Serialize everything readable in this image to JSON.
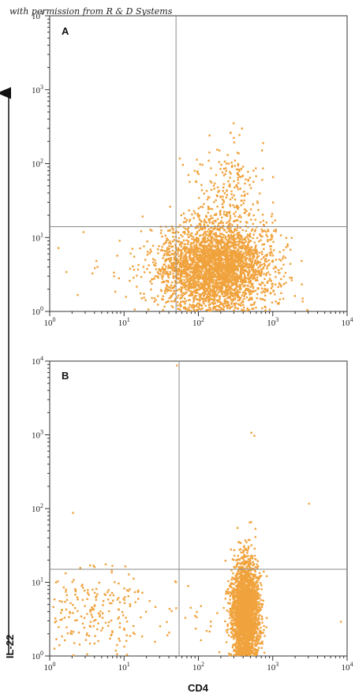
{
  "watermark": "with permission from R & D Systems",
  "colors": {
    "events": "#f0a23c",
    "gate": "#8a8a8a",
    "frame": "#333333",
    "axis_arrow": "#111111"
  },
  "chart_data": [
    {
      "type": "scatter",
      "panel": "A",
      "xlabel": "",
      "ylabel": "",
      "x_scale": "log",
      "y_scale": "log",
      "xlim": [
        1,
        10000
      ],
      "ylim": [
        1,
        10000
      ],
      "x_ticks": [
        "10^0",
        "10^1",
        "10^2",
        "10^3",
        "10^4"
      ],
      "y_ticks": [
        "10^0",
        "10^1",
        "10^2",
        "10^3",
        "10^4"
      ],
      "quadrant_gates": {
        "x": 50,
        "y": 14
      },
      "clusters": [
        {
          "x_center": 160,
          "y_center": 4,
          "x_spread": 0.38,
          "y_spread": 0.3,
          "points": 3200
        },
        {
          "x_center": 260,
          "y_center": 35,
          "x_spread": 0.25,
          "y_spread": 0.4,
          "points": 260
        },
        {
          "x_center": 12,
          "y_center": 3.5,
          "x_spread": 0.45,
          "y_spread": 0.25,
          "points": 25
        }
      ]
    },
    {
      "type": "scatter",
      "panel": "B",
      "xlabel": "CD4",
      "ylabel": "IL-22",
      "x_scale": "log",
      "y_scale": "log",
      "xlim": [
        1,
        10000
      ],
      "ylim": [
        1,
        10000
      ],
      "x_ticks": [
        "10^0",
        "10^1",
        "10^2",
        "10^3",
        "10^4"
      ],
      "y_ticks": [
        "10^0",
        "10^1",
        "10^2",
        "10^3",
        "10^4"
      ],
      "quadrant_gates": {
        "x": 55,
        "y": 15
      },
      "clusters": [
        {
          "x_center": 420,
          "y_center": 4,
          "x_spread": 0.09,
          "y_spread": 0.36,
          "points": 2600
        },
        {
          "x_center": 4,
          "y_center": 4,
          "x_spread": 0.4,
          "y_spread": 0.3,
          "points": 230
        },
        {
          "x_center": 80,
          "y_center": 3,
          "x_spread": 0.2,
          "y_spread": 0.25,
          "points": 20
        }
      ],
      "outliers": [
        [
          50,
          9000
        ],
        [
          500,
          1100
        ],
        [
          550,
          1000
        ],
        [
          3000,
          120
        ],
        [
          2,
          90
        ],
        [
          8000,
          3
        ]
      ]
    }
  ]
}
